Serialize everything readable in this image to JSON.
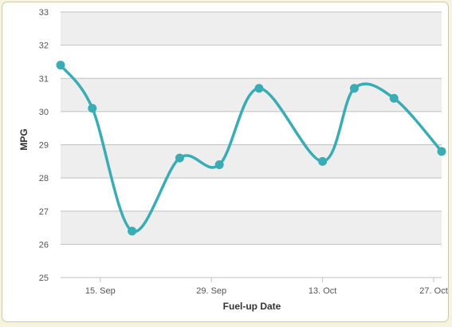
{
  "chart_data": {
    "type": "line",
    "title": "",
    "xlabel": "Fuel-up Date",
    "ylabel": "MPG",
    "ylim": [
      25,
      33
    ],
    "y_ticks": [
      "25",
      "26",
      "27",
      "28",
      "29",
      "30",
      "31",
      "32",
      "33"
    ],
    "x_ticks": [
      {
        "label": "15. Sep",
        "date": "2014-09-15"
      },
      {
        "label": "29. Sep",
        "date": "2014-09-29"
      },
      {
        "label": "13. Oct",
        "date": "2014-10-13"
      },
      {
        "label": "27. Oct",
        "date": "2014-10-27"
      }
    ],
    "x_range": [
      "2014-09-10",
      "2014-10-28"
    ],
    "series": [
      {
        "name": "",
        "color": "#3aacb4",
        "points": [
          {
            "x": "2014-09-10",
            "y": 31.4
          },
          {
            "x": "2014-09-14",
            "y": 30.1
          },
          {
            "x": "2014-09-19",
            "y": 26.4
          },
          {
            "x": "2014-09-25",
            "y": 28.6
          },
          {
            "x": "2014-09-30",
            "y": 28.4
          },
          {
            "x": "2014-10-05",
            "y": 30.7
          },
          {
            "x": "2014-10-13",
            "y": 28.5
          },
          {
            "x": "2014-10-17",
            "y": 30.7
          },
          {
            "x": "2014-10-22",
            "y": 30.4
          },
          {
            "x": "2014-10-28",
            "y": 28.8
          }
        ]
      }
    ],
    "grid": true,
    "band_color": "#eeeeee",
    "grid_color": "#c0c0c0"
  }
}
